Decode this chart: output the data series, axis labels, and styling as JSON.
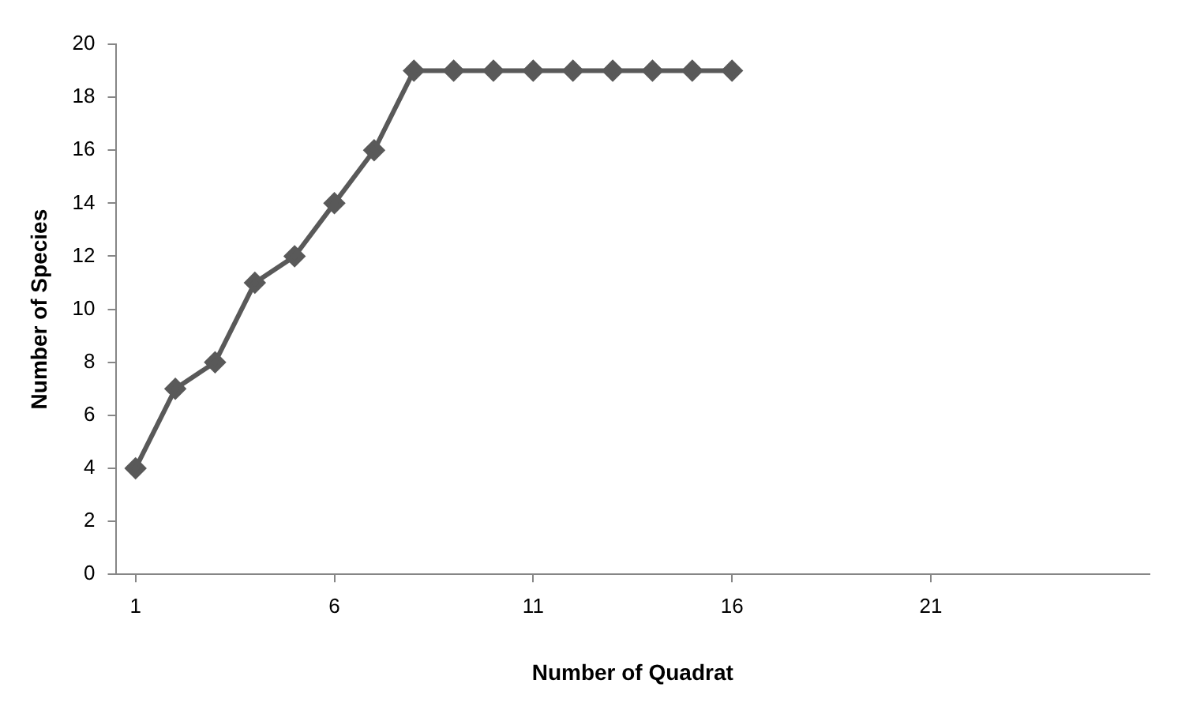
{
  "chart_data": {
    "type": "line",
    "xlabel": "Number of Quadrat",
    "ylabel": "Number of Species",
    "x": [
      1,
      2,
      3,
      4,
      5,
      6,
      7,
      8,
      9,
      10,
      11,
      12,
      13,
      14,
      15,
      16
    ],
    "series": [
      {
        "color": "#595959",
        "values": [
          4,
          7,
          8,
          11,
          12,
          14,
          16,
          19,
          19,
          19,
          19,
          19,
          19,
          19,
          19,
          19
        ]
      }
    ],
    "xlim": [
      0.5,
      26.5
    ],
    "xticks": [
      1,
      6,
      11,
      16,
      21
    ],
    "ylim": [
      0,
      20
    ],
    "yticks": [
      0,
      2,
      4,
      6,
      8,
      10,
      12,
      14,
      16,
      18,
      20
    ],
    "marker": "diamond",
    "line_style": "solid",
    "legend": false,
    "grid": false
  }
}
